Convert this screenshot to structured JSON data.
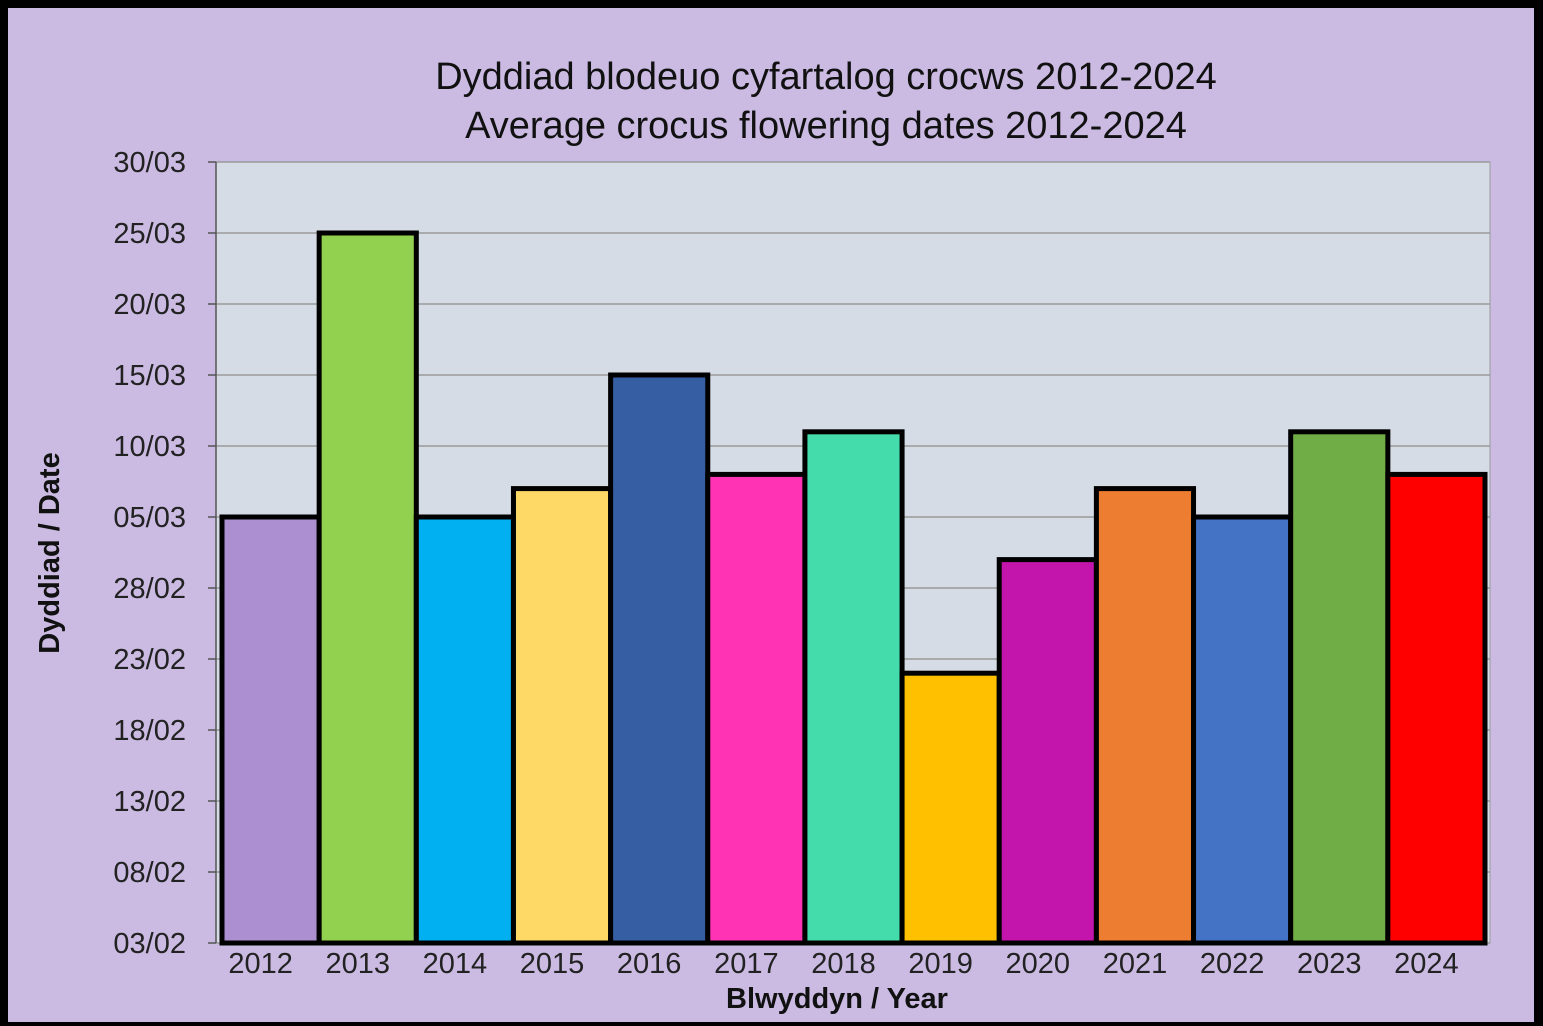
{
  "colors": {
    "frame_border": "#000000",
    "background": "#cbbbe3",
    "plot_area": "#d6dce5",
    "gridline": "#9a9a9a",
    "bar_outline": "#000000"
  },
  "chart_data": {
    "type": "bar",
    "title": [
      "Dyddiad blodeuo cyfartalog crocws 2012-2024",
      "Average crocus flowering dates 2012-2024"
    ],
    "xlabel": "Blwyddyn / Year",
    "ylabel": "Dyddiad / Date",
    "categories": [
      "2012",
      "2013",
      "2014",
      "2015",
      "2016",
      "2017",
      "2018",
      "2019",
      "2020",
      "2021",
      "2022",
      "2023",
      "2024"
    ],
    "values": [
      "05/03",
      "25/03",
      "05/03",
      "07/03",
      "15/03",
      "08/03",
      "11/03",
      "22/02",
      "02/03",
      "07/03",
      "05/03",
      "11/03",
      "08/03"
    ],
    "bar_colors": [
      "#ab8fd1",
      "#92d050",
      "#00b0f0",
      "#ffd966",
      "#365fa3",
      "#ff33b4",
      "#44dcaa",
      "#ffc000",
      "#c314ac",
      "#ed7d31",
      "#4472c4",
      "#70ad47",
      "#ff0000"
    ],
    "yticks": [
      "30/03",
      "25/03",
      "20/03",
      "15/03",
      "10/03",
      "05/03",
      "28/02",
      "23/02",
      "18/02",
      "13/02",
      "08/02",
      "03/02"
    ],
    "ylim": [
      "03/02",
      "30/03"
    ],
    "grid": true,
    "legend": "none"
  }
}
